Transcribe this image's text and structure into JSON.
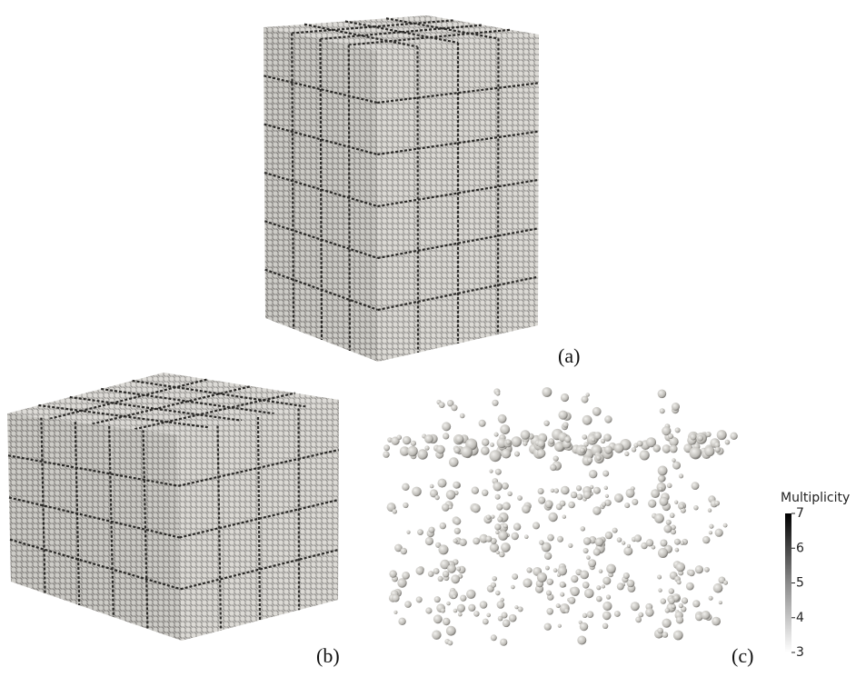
{
  "panels": [
    {
      "label": "(a)"
    },
    {
      "label": "(b)"
    },
    {
      "label": "(c)"
    }
  ],
  "colorbar": {
    "title": "Multiplicity",
    "range": [
      3,
      7
    ],
    "ticks": [
      3,
      4,
      5,
      6,
      7
    ]
  }
}
